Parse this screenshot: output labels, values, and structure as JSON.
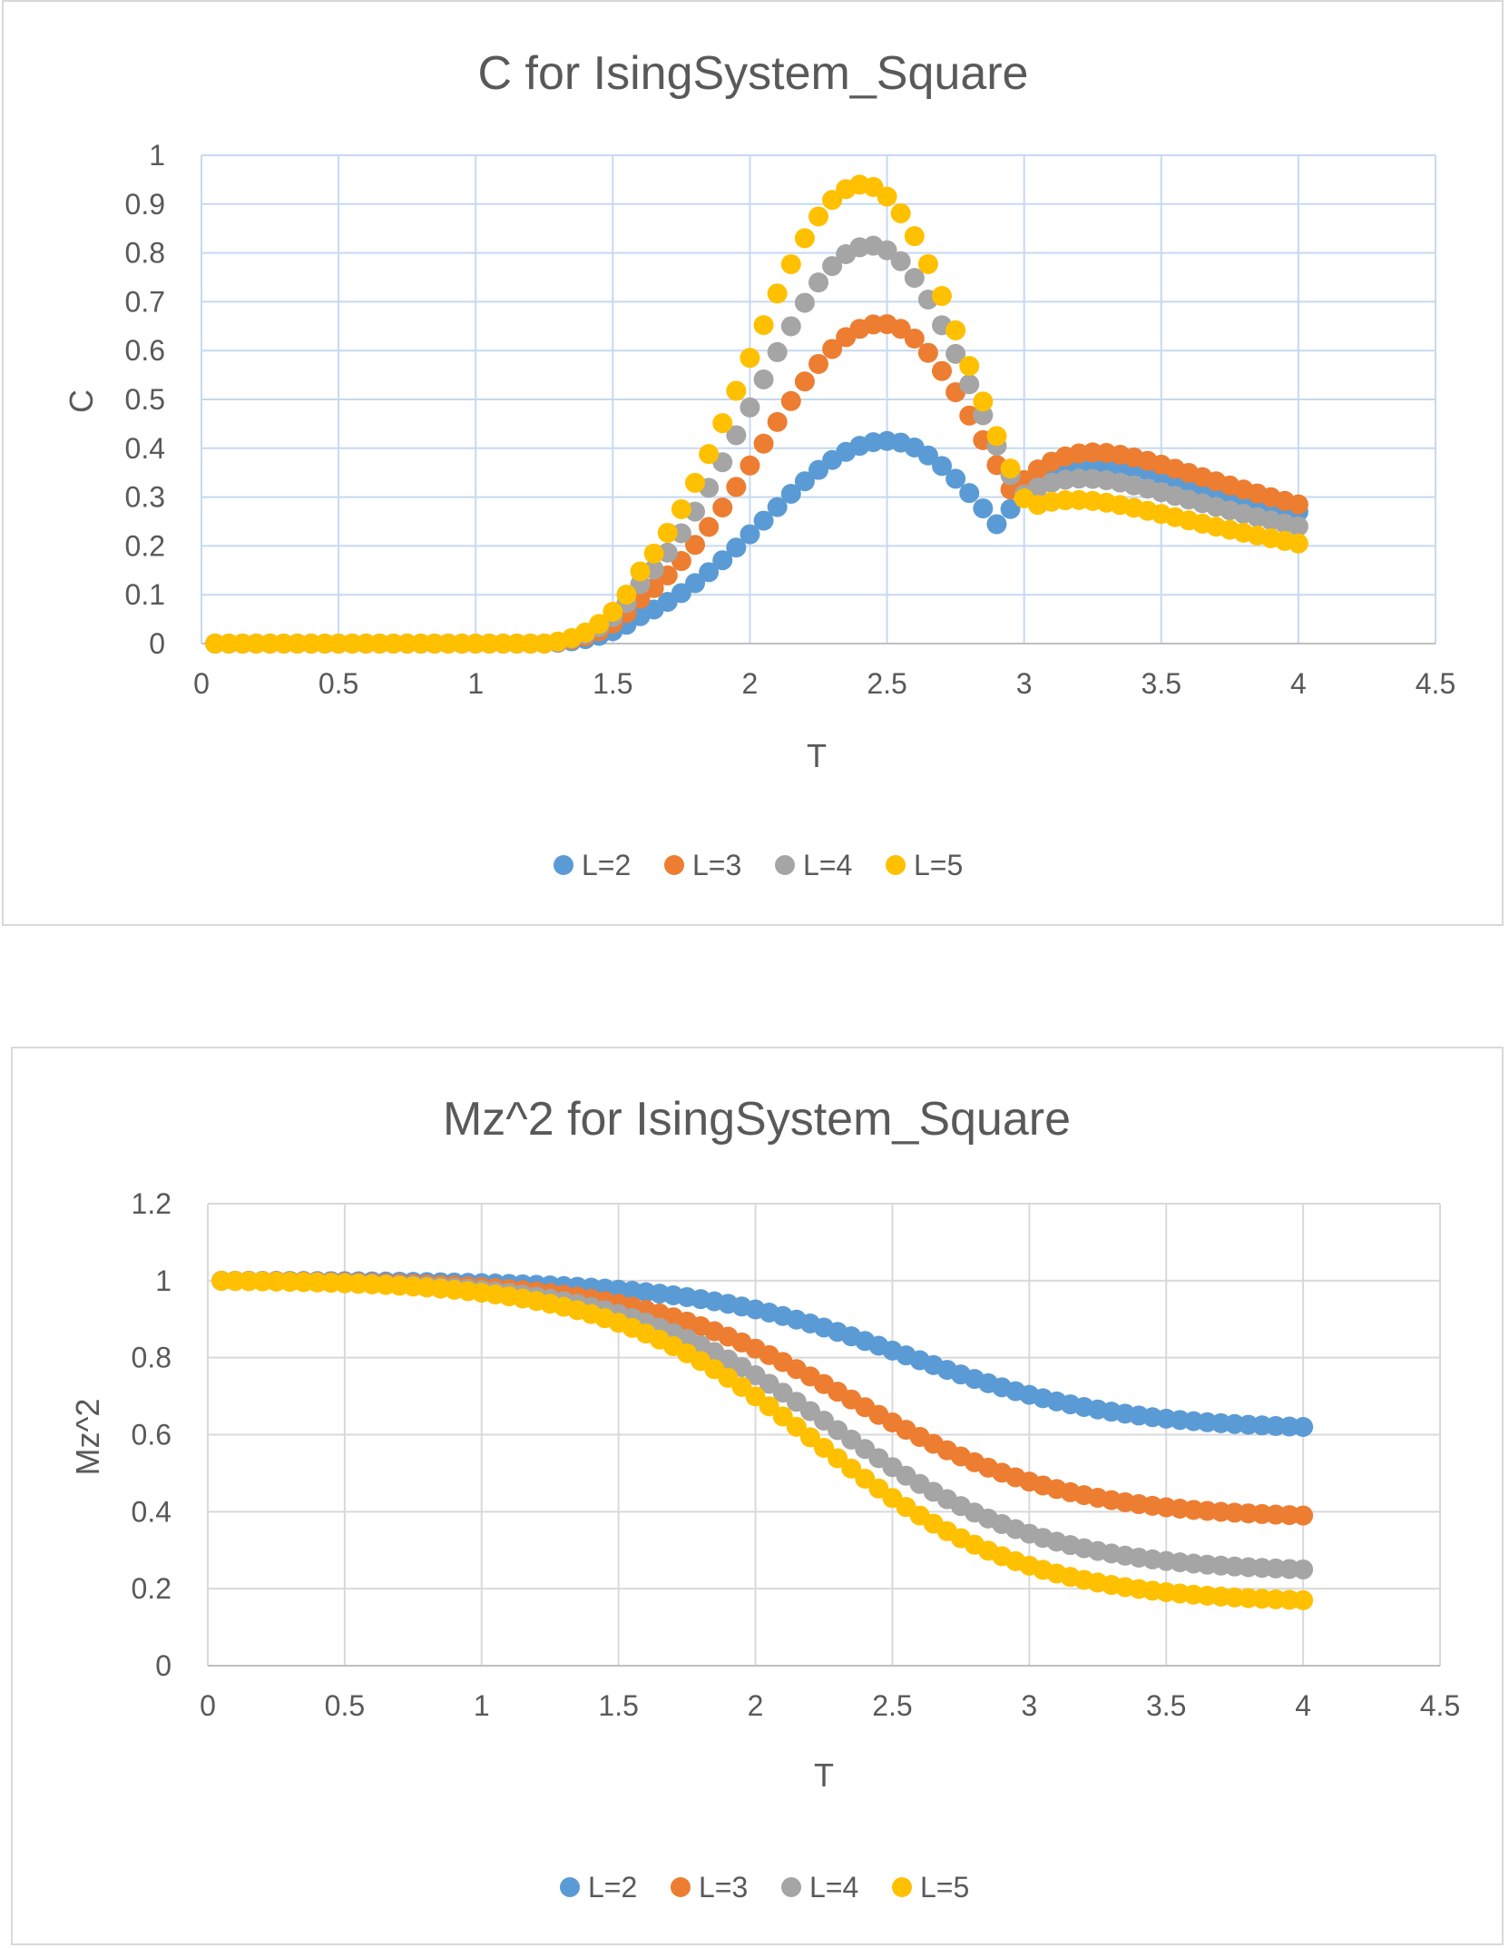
{
  "chart_data": [
    {
      "type": "scatter",
      "title": "C for IsingSystem_Square",
      "xlabel": "T",
      "ylabel": "C",
      "xlim": [
        0,
        4.5
      ],
      "ylim": [
        0,
        1
      ],
      "x_ticks": [
        "0",
        "0.5",
        "1",
        "1.5",
        "2",
        "2.5",
        "3",
        "3.5",
        "4",
        "4.5"
      ],
      "y_ticks": [
        "0",
        "0.1",
        "0.2",
        "0.3",
        "0.4",
        "0.5",
        "0.6",
        "0.7",
        "0.8",
        "0.9",
        "1"
      ],
      "grid": true,
      "legend": "bottom",
      "x": {
        "start": 0.05,
        "end": 4.0,
        "step": 0.05
      },
      "series": [
        {
          "name": "L=2",
          "color": "#5b9bd5",
          "peak_T": 2.5,
          "peak_C": 0.415,
          "high_T_C": 0.27
        },
        {
          "name": "L=3",
          "color": "#ed7d31",
          "peak_T": 2.48,
          "peak_C": 0.655,
          "high_T_C": 0.285
        },
        {
          "name": "L=4",
          "color": "#a5a5a5",
          "peak_T": 2.44,
          "peak_C": 0.815,
          "high_T_C": 0.24
        },
        {
          "name": "L=5",
          "color": "#ffc000",
          "peak_T": 2.41,
          "peak_C": 0.94,
          "high_T_C": 0.205
        }
      ]
    },
    {
      "type": "scatter",
      "title": "Mz^2 for IsingSystem_Square",
      "xlabel": "T",
      "ylabel": "Mz^2",
      "xlim": [
        0,
        4.5
      ],
      "ylim": [
        0,
        1.2
      ],
      "x_ticks": [
        "0",
        "0.5",
        "1",
        "1.5",
        "2",
        "2.5",
        "3",
        "3.5",
        "4",
        "4.5"
      ],
      "y_ticks": [
        "0",
        "0.2",
        "0.4",
        "0.6",
        "0.8",
        "1",
        "1.2"
      ],
      "grid": true,
      "legend": "bottom",
      "x": {
        "start": 0.05,
        "end": 4.0,
        "step": 0.05
      },
      "series": [
        {
          "name": "L=2",
          "color": "#5b9bd5",
          "mid_T": 2.55,
          "end_value": 0.62
        },
        {
          "name": "L=3",
          "color": "#ed7d31",
          "mid_T": 2.35,
          "end_value": 0.39
        },
        {
          "name": "L=4",
          "color": "#a5a5a5",
          "mid_T": 2.28,
          "end_value": 0.25
        },
        {
          "name": "L=5",
          "color": "#ffc000",
          "mid_T": 2.22,
          "end_value": 0.17
        }
      ]
    }
  ]
}
